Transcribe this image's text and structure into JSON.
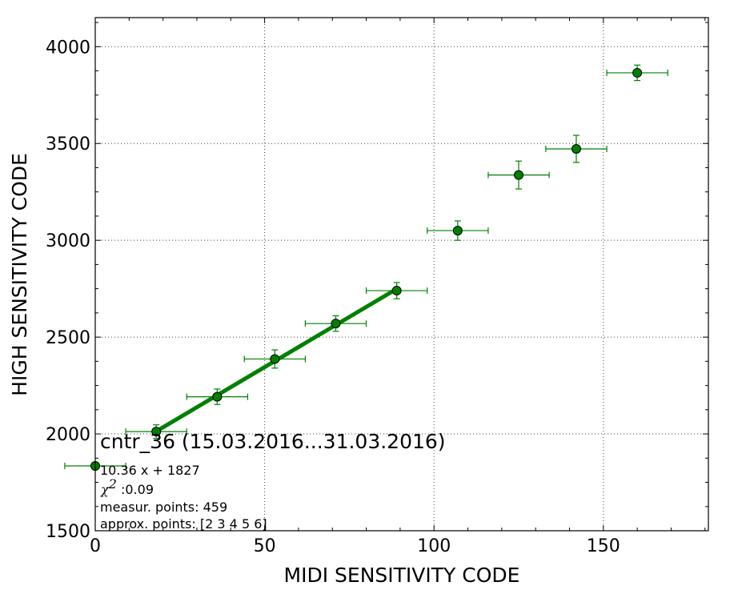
{
  "chart_data": {
    "type": "scatter",
    "xlabel": "MIDI SENSITIVITY CODE",
    "ylabel": "HIGH SENSITIVITY CODE",
    "xlim": [
      0,
      181
    ],
    "ylim": [
      1500,
      4150
    ],
    "xticks": [
      0,
      50,
      100,
      150
    ],
    "yticks": [
      1500,
      2000,
      2500,
      3000,
      3500,
      4000
    ],
    "grid": true,
    "colors": {
      "points": "#008000",
      "fit_line": "#008000",
      "point_edge": "#000000"
    },
    "series": [
      {
        "type": "errorbar",
        "points": [
          {
            "x": 0,
            "y": 1835,
            "xerr": 9,
            "yerr": 10
          },
          {
            "x": 18,
            "y": 2012,
            "xerr": 9,
            "yerr": 35
          },
          {
            "x": 36,
            "y": 2192,
            "xerr": 9,
            "yerr": 40
          },
          {
            "x": 53,
            "y": 2387,
            "xerr": 9,
            "yerr": 47
          },
          {
            "x": 71,
            "y": 2570,
            "xerr": 9,
            "yerr": 40
          },
          {
            "x": 89,
            "y": 2740,
            "xerr": 9,
            "yerr": 42
          },
          {
            "x": 107,
            "y": 3050,
            "xerr": 9,
            "yerr": 50
          },
          {
            "x": 125,
            "y": 3337,
            "xerr": 9,
            "yerr": 72
          },
          {
            "x": 142,
            "y": 3472,
            "xerr": 9,
            "yerr": 70
          },
          {
            "x": 160,
            "y": 3865,
            "xerr": 9,
            "yerr": 40
          }
        ]
      },
      {
        "type": "fit_line",
        "slope": 10.36,
        "intercept": 1827,
        "x_range": [
          18,
          89
        ]
      }
    ],
    "annotations": {
      "title": "cntr_36 (15.03.2016...31.03.2016)",
      "equation": "10.36 x + 1827",
      "chi2_symbol": "χ",
      "chi2_power": "2",
      "chi2_value": " :0.09",
      "measur_points": "measur. points: 459",
      "approx_points": "approx. points: [2 3 4 5 6]"
    }
  }
}
